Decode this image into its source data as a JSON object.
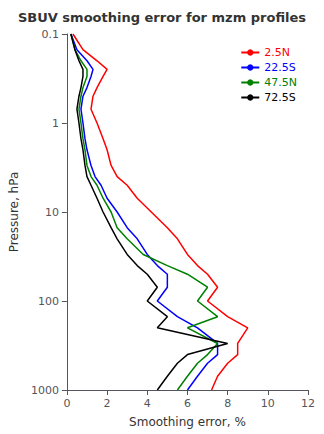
{
  "chart_data": {
    "type": "line",
    "title": "SBUV smoothing error for mzm profiles",
    "xlabel": "Smoothing error, %",
    "ylabel": "Pressure, hPa",
    "xlim": [
      0,
      12
    ],
    "xticks": [
      0,
      2,
      4,
      6,
      8,
      10,
      12
    ],
    "ylim": [
      1000.0,
      0.1
    ],
    "yticks": [
      0.1,
      1,
      10,
      100,
      1000
    ],
    "log": "y",
    "grid": false,
    "legend": "upper right",
    "y": [
      0.1,
      0.15,
      0.2,
      0.25,
      0.3,
      0.4,
      0.5,
      0.7,
      1.0,
      1.5,
      2.0,
      3.0,
      4.0,
      5.0,
      7.0,
      10.0,
      15.0,
      20.0,
      30.0,
      40.0,
      50.0,
      70.0,
      100.0,
      150.0,
      200.0,
      300.0,
      400.0,
      500.0,
      700.0,
      1000.0
    ],
    "series": [
      {
        "name": "2.5N",
        "color": "#ff0000",
        "x": [
          0.3,
          0.8,
          1.5,
          2.0,
          1.8,
          1.5,
          1.3,
          1.2,
          1.5,
          1.8,
          2.0,
          2.2,
          2.5,
          3.0,
          3.5,
          4.2,
          5.0,
          5.5,
          6.0,
          6.5,
          7.0,
          7.5,
          7.0,
          8.0,
          9.0,
          8.5,
          8.5,
          8.0,
          7.5,
          7.2
        ]
      },
      {
        "name": "22.5S",
        "color": "#0000ff",
        "x": [
          0.2,
          0.5,
          1.0,
          1.3,
          1.2,
          1.0,
          0.8,
          0.7,
          0.8,
          0.9,
          1.0,
          1.2,
          1.4,
          1.7,
          2.0,
          2.5,
          3.0,
          3.5,
          4.0,
          4.5,
          5.0,
          5.0,
          4.5,
          5.5,
          6.5,
          7.5,
          7.5,
          7.0,
          6.5,
          6.0
        ]
      },
      {
        "name": "47.5N",
        "color": "#008000",
        "x": [
          0.2,
          0.4,
          0.7,
          1.0,
          1.0,
          0.8,
          0.7,
          0.6,
          0.7,
          0.8,
          0.9,
          1.0,
          1.2,
          1.5,
          1.8,
          2.2,
          2.5,
          3.0,
          3.8,
          5.0,
          6.0,
          7.0,
          6.5,
          7.5,
          6.0,
          7.5,
          7.0,
          6.5,
          6.0,
          5.5
        ]
      },
      {
        "name": "72.5S",
        "color": "#000000",
        "x": [
          0.2,
          0.4,
          0.6,
          0.8,
          0.8,
          0.7,
          0.6,
          0.5,
          0.6,
          0.7,
          0.8,
          0.9,
          1.0,
          1.2,
          1.5,
          1.8,
          2.2,
          2.5,
          3.0,
          3.5,
          4.0,
          4.5,
          4.0,
          5.0,
          4.5,
          8.0,
          6.0,
          5.5,
          5.0,
          4.5
        ]
      }
    ]
  }
}
